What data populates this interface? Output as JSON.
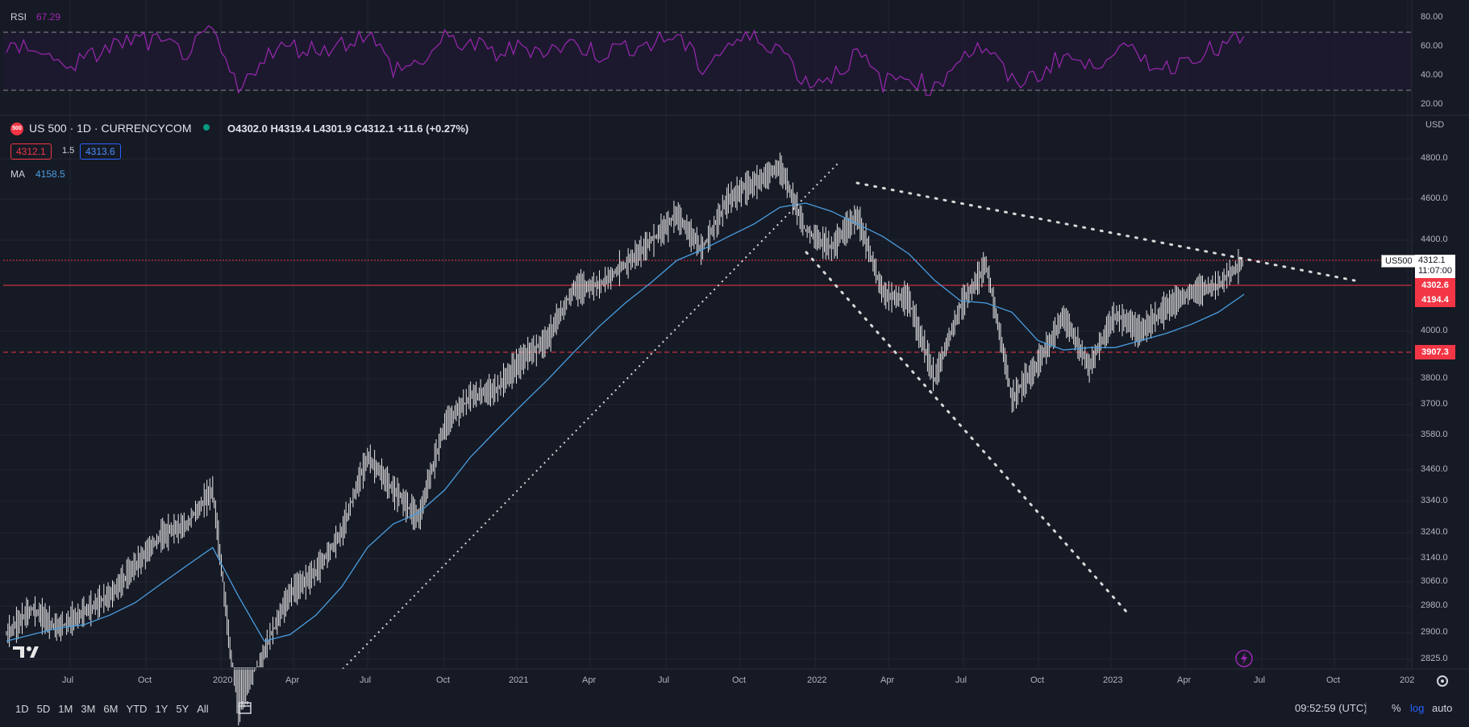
{
  "colors": {
    "background": "#161a25",
    "grid": "#232734",
    "candles": "#e6e6e6",
    "ma": "#4a9ee0",
    "rsi": "#9c27b0",
    "red_line": "#f23645",
    "trend": "#d0d0d0"
  },
  "rsi": {
    "label": "RSI",
    "value": "67.29",
    "upper": 70,
    "lower": 30,
    "ticks": [
      "80.00",
      "60.00",
      "40.00",
      "20.00"
    ]
  },
  "header": {
    "symbol_badge": "500",
    "symbol": "US 500 · 1D · CURRENCYCOM",
    "ohlc": "O4302.0  H4319.4  L4301.9  C4312.1  +11.6 (+0.27%)",
    "bid": "4312.1",
    "spread": "1.5",
    "ask": "4313.6",
    "ma_label": "MA",
    "ma_value": "4158.5"
  },
  "axis": {
    "currency": "USD",
    "price_ticks": [
      "4800.0",
      "4600.0",
      "4400.0",
      "4000.0",
      "3800.0",
      "3700.0",
      "3580.0",
      "3460.0",
      "3340.0",
      "3240.0",
      "3140.0",
      "3060.0",
      "2980.0",
      "2900.0",
      "2825.0"
    ],
    "time_ticks": [
      "Jul",
      "Oct",
      "2020",
      "Apr",
      "Jul",
      "Oct",
      "2021",
      "Apr",
      "Jul",
      "Oct",
      "2022",
      "Apr",
      "Jul",
      "Oct",
      "2023",
      "Apr",
      "Jul",
      "Oct",
      "202"
    ]
  },
  "price_labels": {
    "symbol_tag": "US500",
    "last_price": "4312.1",
    "countdown": "11:07:00",
    "level1": "4302.6",
    "level2": "4194.4",
    "level3": "3907.3"
  },
  "toolbar": {
    "timeframes": [
      "1D",
      "5D",
      "1M",
      "3M",
      "6M",
      "YTD",
      "1Y",
      "5Y",
      "All"
    ],
    "clock": "09:52:59 (UTC)",
    "percent": "%",
    "log": "log",
    "auto": "auto"
  },
  "chart_data": {
    "type": "line",
    "title": "US 500 · 1D · CURRENCYCOM",
    "y_scale": "log",
    "ylim": [
      2825,
      4800
    ],
    "x": [
      "2019-06",
      "2019-07",
      "2019-08",
      "2019-09",
      "2019-10",
      "2019-11",
      "2019-12",
      "2020-01",
      "2020-02",
      "2020-03",
      "2020-04",
      "2020-05",
      "2020-06",
      "2020-07",
      "2020-08",
      "2020-09",
      "2020-10",
      "2020-11",
      "2020-12",
      "2021-01",
      "2021-02",
      "2021-03",
      "2021-04",
      "2021-05",
      "2021-06",
      "2021-07",
      "2021-08",
      "2021-09",
      "2021-10",
      "2021-11",
      "2021-12",
      "2022-01",
      "2022-02",
      "2022-03",
      "2022-04",
      "2022-05",
      "2022-06",
      "2022-07",
      "2022-08",
      "2022-09",
      "2022-10",
      "2022-11",
      "2022-12",
      "2023-01",
      "2023-02",
      "2023-03",
      "2023-04",
      "2023-05",
      "2023-06"
    ],
    "series": [
      {
        "name": "US 500",
        "values": [
          2900,
          2980,
          2920,
          2970,
          3020,
          3120,
          3220,
          3260,
          3380,
          2600,
          2850,
          3030,
          3100,
          3230,
          3500,
          3380,
          3280,
          3620,
          3730,
          3760,
          3880,
          3970,
          4180,
          4200,
          4290,
          4400,
          4520,
          4360,
          4600,
          4680,
          4760,
          4450,
          4370,
          4520,
          4160,
          4130,
          3800,
          4100,
          4290,
          3720,
          3860,
          4060,
          3850,
          4070,
          4000,
          4100,
          4170,
          4200,
          4310
        ]
      },
      {
        "name": "MA",
        "values": [
          2880,
          2900,
          2920,
          2930,
          2960,
          3000,
          3060,
          3120,
          3180,
          3020,
          2880,
          2900,
          2960,
          3050,
          3180,
          3260,
          3300,
          3380,
          3500,
          3600,
          3700,
          3800,
          3910,
          4020,
          4120,
          4210,
          4310,
          4360,
          4420,
          4480,
          4560,
          4580,
          4540,
          4480,
          4420,
          4340,
          4220,
          4130,
          4120,
          4080,
          3960,
          3920,
          3930,
          3930,
          3960,
          3990,
          4030,
          4080,
          4158
        ]
      },
      {
        "name": "RSI",
        "values": [
          55,
          62,
          48,
          50,
          60,
          65,
          62,
          56,
          70,
          28,
          55,
          60,
          58,
          62,
          70,
          45,
          48,
          65,
          62,
          55,
          60,
          58,
          62,
          55,
          60,
          62,
          68,
          45,
          62,
          66,
          60,
          35,
          40,
          55,
          35,
          40,
          30,
          55,
          60,
          35,
          40,
          55,
          45,
          60,
          52,
          45,
          55,
          58,
          67.29
        ]
      }
    ]
  }
}
